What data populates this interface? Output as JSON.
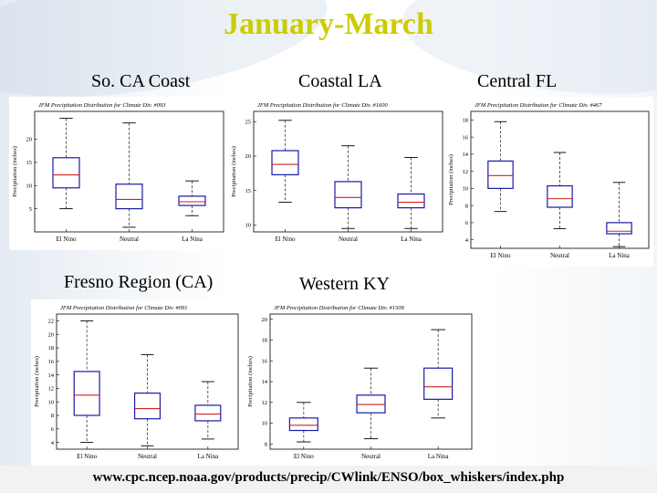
{
  "title": "January-March",
  "url": "www.cpc.ncep.noaa.gov/products/precip/CWlink/ENSO/box_whiskers/index.php",
  "colors": {
    "title": "#cccc00",
    "box": "#1a1aa8",
    "median": "#d42020",
    "whisker": "#333333"
  },
  "chart_data": [
    {
      "type": "box",
      "label": "So. CA Coast",
      "title": "JFM Precipitation Distribution for Climate Div. #093",
      "ylabel": "Precipitation (inches)",
      "categories": [
        "El Nino",
        "Neutral",
        "La Nina"
      ],
      "yticks": [
        5,
        10,
        15,
        20
      ],
      "ylim": [
        0,
        26
      ],
      "boxes": [
        {
          "min": 5,
          "q1": 9.5,
          "median": 12.3,
          "q3": 16,
          "max": 24.5
        },
        {
          "min": 1,
          "q1": 5,
          "median": 7,
          "q3": 10.3,
          "max": 23.5
        },
        {
          "min": 3.5,
          "q1": 5.7,
          "median": 6.5,
          "q3": 7.7,
          "max": 11
        }
      ]
    },
    {
      "type": "box",
      "label": "Coastal LA",
      "title": "JFM Precipitation Distribution for Climate Div. #1600",
      "ylabel": "Precipitation (inches)",
      "categories": [
        "El Nino",
        "Neutral",
        "La Nina"
      ],
      "yticks": [
        10,
        15,
        20,
        25
      ],
      "ylim": [
        9,
        26.5
      ],
      "boxes": [
        {
          "min": 13.3,
          "q1": 17.3,
          "median": 18.8,
          "q3": 20.8,
          "max": 25.2
        },
        {
          "min": 9.5,
          "q1": 12.5,
          "median": 14,
          "q3": 16.3,
          "max": 21.5
        },
        {
          "min": 9.5,
          "q1": 12.5,
          "median": 13.3,
          "q3": 14.5,
          "max": 19.8
        }
      ]
    },
    {
      "type": "box",
      "label": "Central FL",
      "title": "JFM Precipitation Distribution for Climate Div. #467",
      "ylabel": "Precipitation (inches)",
      "categories": [
        "El Nino",
        "Neutral",
        "La Nina"
      ],
      "yticks": [
        4,
        6,
        8,
        10,
        12,
        14,
        16,
        18
      ],
      "ylim": [
        3,
        19
      ],
      "boxes": [
        {
          "min": 7.3,
          "q1": 10,
          "median": 11.5,
          "q3": 13.2,
          "max": 17.8
        },
        {
          "min": 5.3,
          "q1": 7.8,
          "median": 8.8,
          "q3": 10.3,
          "max": 14.2
        },
        {
          "min": 3.2,
          "q1": 4.7,
          "median": 5,
          "q3": 6,
          "max": 10.7
        }
      ]
    },
    {
      "type": "box",
      "label": "Fresno Region (CA)",
      "title": "JFM Precipitation Distribution for Climate Div. #091",
      "ylabel": "Precipitation (inches)",
      "categories": [
        "El Nino",
        "Neutral",
        "La Nina"
      ],
      "yticks": [
        4,
        6,
        8,
        10,
        12,
        14,
        16,
        18,
        20,
        22
      ],
      "ylim": [
        3,
        23
      ],
      "boxes": [
        {
          "min": 4,
          "q1": 8,
          "median": 11,
          "q3": 14.5,
          "max": 22
        },
        {
          "min": 3.5,
          "q1": 7.5,
          "median": 9,
          "q3": 11.3,
          "max": 17
        },
        {
          "min": 4.5,
          "q1": 7.2,
          "median": 8.2,
          "q3": 9.5,
          "max": 13
        }
      ]
    },
    {
      "type": "box",
      "label": "Western KY",
      "title": "JFM Precipitation Distribution for Climate Div. #1509",
      "ylabel": "Precipitation (inches)",
      "categories": [
        "El Nino",
        "Neutral",
        "La Nina"
      ],
      "yticks": [
        8,
        10,
        12,
        14,
        16,
        18,
        20
      ],
      "ylim": [
        7.5,
        20.5
      ],
      "boxes": [
        {
          "min": 8.2,
          "q1": 9.3,
          "median": 9.8,
          "q3": 10.5,
          "max": 12
        },
        {
          "min": 8.5,
          "q1": 11,
          "median": 11.8,
          "q3": 12.7,
          "max": 15.3
        },
        {
          "min": 10.5,
          "q1": 12.3,
          "median": 13.5,
          "q3": 15.3,
          "max": 19
        }
      ]
    }
  ]
}
